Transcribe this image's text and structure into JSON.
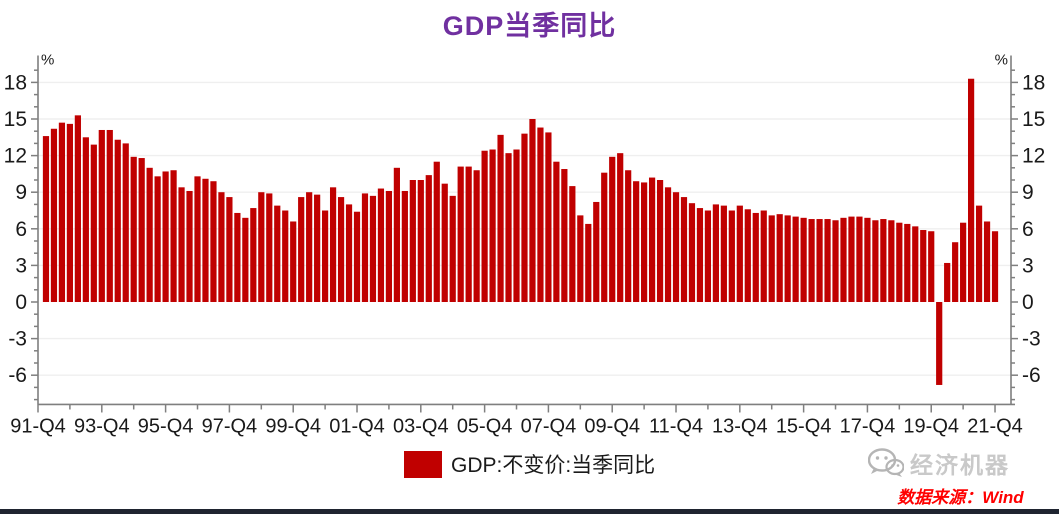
{
  "page": {
    "title": "GDP当季同比",
    "legend_label": "GDP:不变价:当季同比",
    "source_text": "数据来源：Wind",
    "brand_text": "经济机器"
  },
  "colors": {
    "title": "#7030A0",
    "bar": "#C00000",
    "tick_label": "#1a1a1a",
    "axis_line": "#7f7f7f",
    "gridline": "#efefef",
    "source_text": "#FF0000",
    "brand_text": "#c9c9c9",
    "brand_icon": "#b5b5b5",
    "bottom_bar": "#1f2430"
  },
  "chart_data": {
    "type": "bar",
    "title": "GDP当季同比",
    "ylabel": "%",
    "legend": [
      "GDP:不变价:当季同比"
    ],
    "legend_position": "bottom",
    "grid": true,
    "start_quarter": "1992-Q1",
    "end_quarter": "2021-Q4",
    "x_tick_labels": [
      "91-Q4",
      "93-Q4",
      "95-Q4",
      "97-Q4",
      "99-Q4",
      "01-Q4",
      "03-Q4",
      "05-Q4",
      "07-Q4",
      "09-Q4",
      "11-Q4",
      "13-Q4",
      "15-Q4",
      "17-Q4",
      "19-Q4",
      "21-Q4"
    ],
    "y_ticks": [
      -6,
      -3,
      0,
      3,
      6,
      9,
      12,
      15,
      18
    ],
    "y_minor_step": 1,
    "ylim": [
      -8.4,
      19.3
    ],
    "unit": "%",
    "values": [
      13.6,
      14.2,
      14.7,
      14.6,
      15.3,
      13.5,
      12.9,
      14.1,
      14.1,
      13.3,
      13.0,
      11.9,
      11.8,
      11.0,
      10.3,
      10.7,
      10.8,
      9.4,
      9.1,
      10.3,
      10.1,
      9.9,
      9.0,
      8.6,
      7.3,
      6.9,
      7.7,
      9.0,
      8.9,
      7.9,
      7.5,
      6.6,
      8.6,
      9.0,
      8.8,
      7.5,
      9.4,
      8.6,
      8.0,
      7.4,
      8.9,
      8.7,
      9.3,
      9.1,
      11.0,
      9.1,
      10.0,
      10.0,
      10.4,
      11.5,
      9.7,
      8.7,
      11.1,
      11.1,
      10.8,
      12.4,
      12.5,
      13.7,
      12.2,
      12.5,
      13.8,
      15.0,
      14.3,
      13.9,
      11.5,
      10.9,
      9.5,
      7.1,
      6.4,
      8.2,
      10.6,
      11.9,
      12.2,
      10.8,
      9.9,
      9.8,
      10.2,
      10.0,
      9.4,
      9.0,
      8.6,
      8.1,
      7.7,
      7.5,
      8.0,
      7.9,
      7.5,
      7.9,
      7.6,
      7.3,
      7.5,
      7.1,
      7.2,
      7.1,
      7.0,
      6.9,
      6.8,
      6.8,
      6.8,
      6.7,
      6.9,
      7.0,
      7.0,
      6.9,
      6.7,
      6.8,
      6.7,
      6.5,
      6.4,
      6.2,
      5.9,
      5.8,
      -6.8,
      3.2,
      4.9,
      6.5,
      18.3,
      7.9,
      6.6,
      5.8
    ]
  }
}
